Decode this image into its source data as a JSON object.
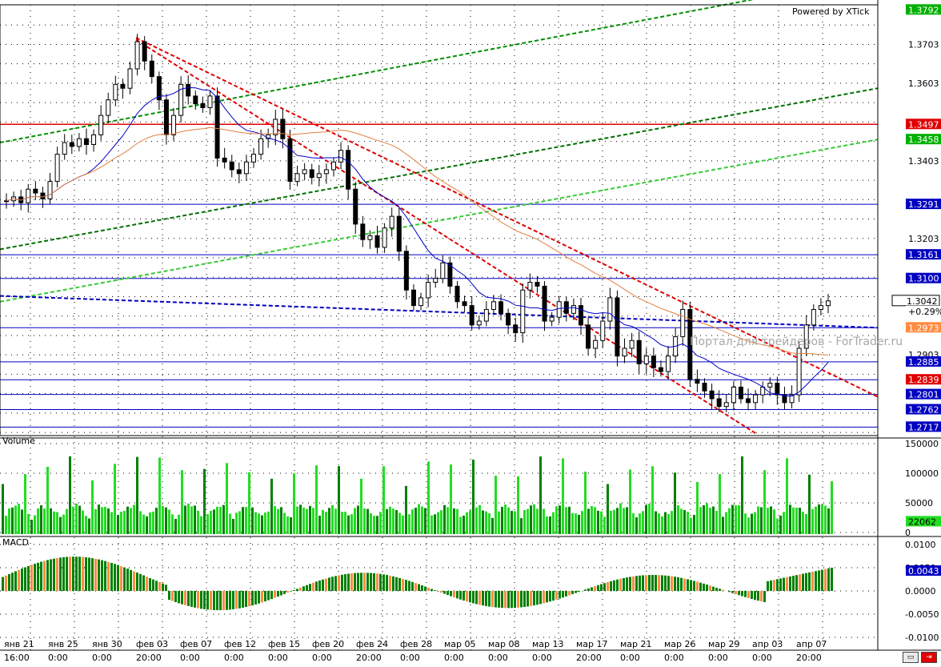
{
  "watermark": "Powered by XTick",
  "site_watermark": "Портал для трейдеров - ForTrader.ru",
  "price_labels": [
    {
      "value": "1.3792",
      "color": "#00b000"
    },
    {
      "value": "1.3497",
      "color": "#e00000"
    },
    {
      "value": "1.3458",
      "color": "#00b000"
    },
    {
      "value": "1.3291",
      "color": "#0000c0"
    },
    {
      "value": "1.3161",
      "color": "#0000c0"
    },
    {
      "value": "1.3100",
      "color": "#0000c0"
    },
    {
      "value": "1.3042",
      "color": "#000000"
    },
    {
      "value": "+0.29%",
      "color": "#ffffff"
    },
    {
      "value": "1.2973",
      "color": "#ff8c40"
    },
    {
      "value": "1.2885",
      "color": "#0000c0"
    },
    {
      "value": "1.2839",
      "color": "#e00000"
    },
    {
      "value": "1.2801",
      "color": "#0000c0"
    },
    {
      "value": "1.2762",
      "color": "#0000c0"
    },
    {
      "value": "1.2717",
      "color": "#0000c0"
    }
  ],
  "price_ticks": [
    "1.3703",
    "1.3603",
    "1.3403",
    "1.3203",
    "1.2903"
  ],
  "panels": {
    "volume_label": "Volume",
    "volume_ticks": [
      "150000",
      "100000",
      "50000",
      "0"
    ],
    "volume_last": "22062",
    "macd_label": "MACD",
    "macd_ticks": [
      "0.0100",
      "0.0050",
      "0.0000",
      "-0.0050",
      "-0.0100"
    ],
    "macd_last": "0.0043"
  },
  "x_dates": [
    "янв 21",
    "янв 25",
    "янв 30",
    "фев 03",
    "фев 07",
    "фев 12",
    "фев 15",
    "фев 20",
    "фев 24",
    "фев 28",
    "мар 05",
    "мар 08",
    "мар 13",
    "мар 17",
    "мар 21",
    "мар 26",
    "мар 29",
    "апр 03",
    "апр 07"
  ],
  "x_times": [
    "16:00",
    "0:00",
    "0:00",
    "20:00",
    "0:00",
    "0:00",
    "0:00",
    "0:00",
    "20:00",
    "0:00",
    "0:00",
    "0:00",
    "0:00",
    "20:00",
    "0:00",
    "0:00",
    "0:00",
    "0:00",
    "20:00"
  ],
  "colors": {
    "bull": "#000000",
    "bear": "#000000",
    "ma_fast": "#0000cc",
    "ma_slow": "#e08040",
    "trend_red": "#e00000",
    "trend_green": "#00a000",
    "volume_green": "#22cc22",
    "macd_up": "#008000",
    "macd_down": "#ff8c40"
  },
  "chart_data": {
    "type": "candlestick",
    "title": "",
    "price_range": [
      1.2695,
      1.3805
    ],
    "last_close": 1.3042,
    "change_pct": "+0.29%",
    "horizontal_levels": [
      1.3497,
      1.3291,
      1.3161,
      1.31,
      1.2973,
      1.2885,
      1.2839,
      1.2801,
      1.2762,
      1.2717
    ],
    "close_series": [
      1.33,
      1.331,
      1.3295,
      1.333,
      1.332,
      1.3305,
      1.335,
      1.342,
      1.345,
      1.344,
      1.346,
      1.3445,
      1.347,
      1.352,
      1.356,
      1.36,
      1.359,
      1.364,
      1.371,
      1.366,
      1.362,
      1.356,
      1.347,
      1.352,
      1.36,
      1.357,
      1.355,
      1.354,
      1.357,
      1.341,
      1.34,
      1.338,
      1.337,
      1.34,
      1.342,
      1.346,
      1.347,
      1.351,
      1.346,
      1.335,
      1.337,
      1.338,
      1.336,
      1.337,
      1.338,
      1.34,
      1.343,
      1.333,
      1.324,
      1.32,
      1.321,
      1.318,
      1.323,
      1.326,
      1.317,
      1.307,
      1.303,
      1.305,
      1.309,
      1.31,
      1.314,
      1.308,
      1.304,
      1.303,
      1.298,
      1.299,
      1.302,
      1.304,
      1.301,
      1.298,
      1.296,
      1.307,
      1.309,
      1.308,
      1.299,
      1.3,
      1.304,
      1.301,
      1.303,
      1.298,
      1.292,
      1.294,
      1.299,
      1.305,
      1.29,
      1.292,
      1.294,
      1.288,
      1.29,
      1.287,
      1.286,
      1.29,
      1.295,
      1.302,
      1.284,
      1.283,
      1.281,
      1.279,
      1.277,
      1.278,
      1.282,
      1.279,
      1.278,
      1.28,
      1.282,
      1.283,
      1.28,
      1.278,
      1.28,
      1.292,
      1.298,
      1.302,
      1.303,
      1.3042
    ]
  }
}
